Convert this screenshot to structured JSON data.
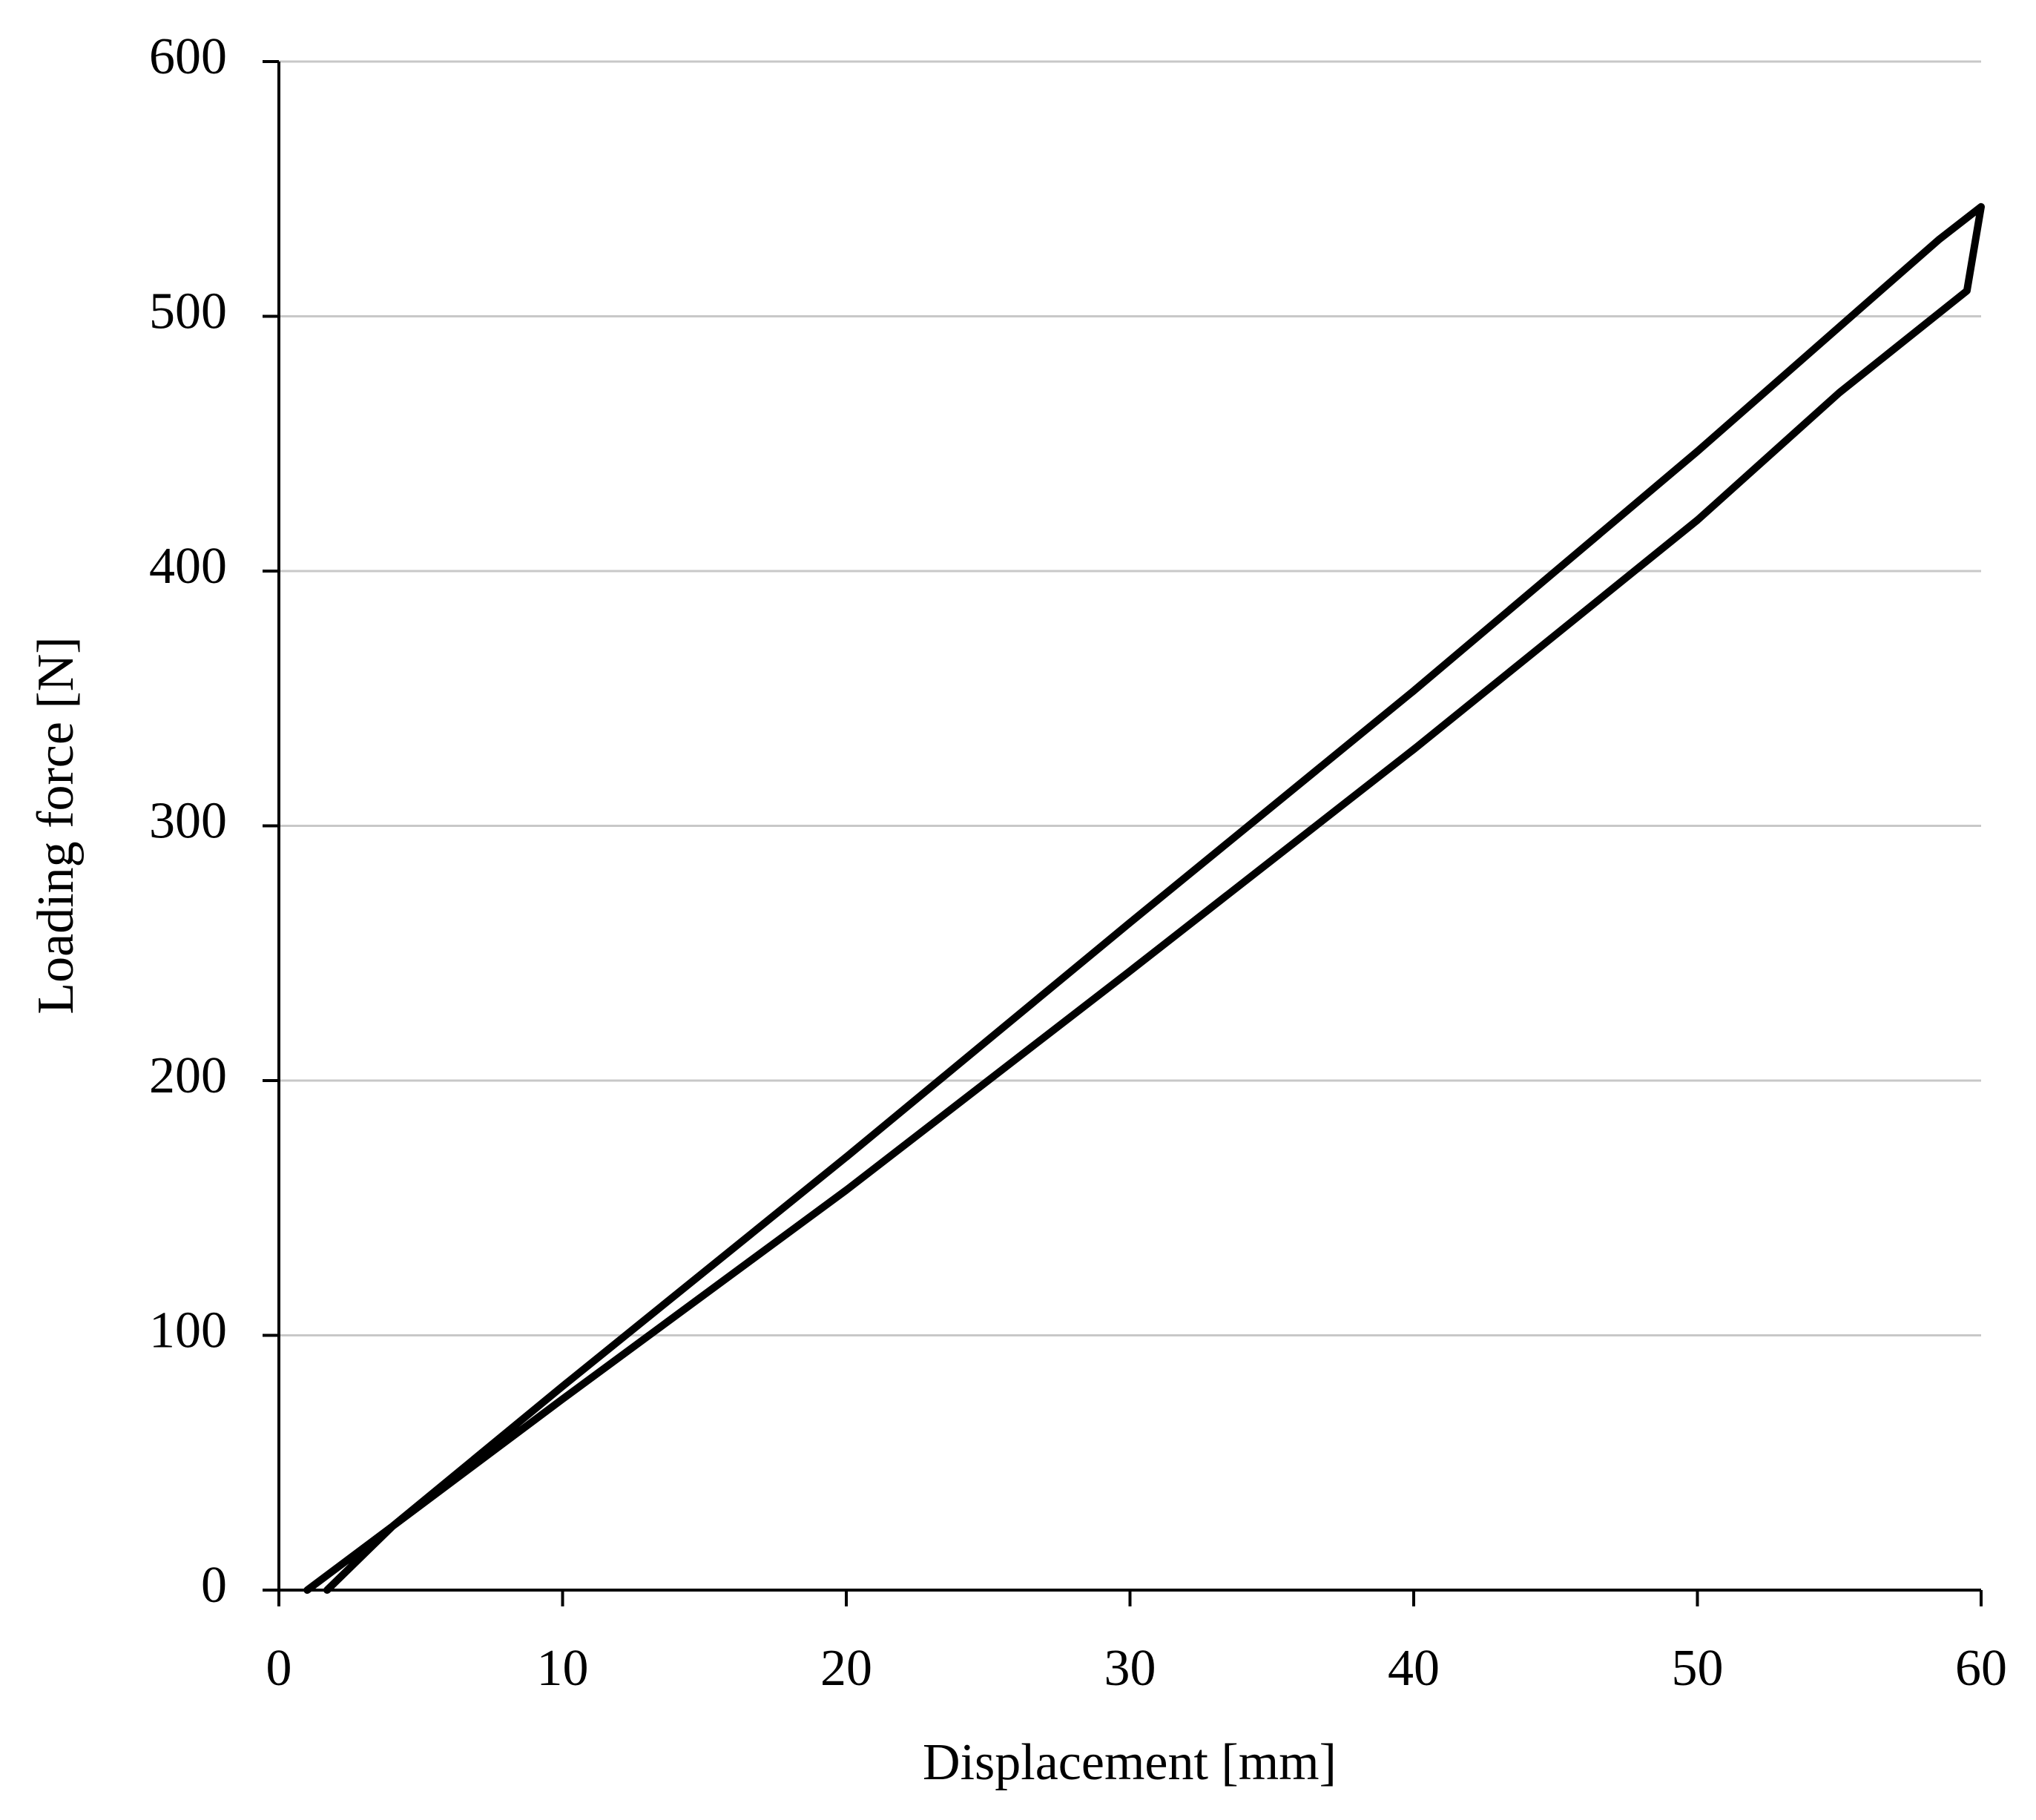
{
  "chart_data": {
    "type": "line",
    "x_label": "Displacement [mm]",
    "y_label": "Loading force [N]",
    "x": [
      1.0,
      4,
      10,
      20,
      30,
      40,
      50,
      58.5,
      60,
      59.5,
      55,
      50,
      40,
      30,
      20,
      10,
      4,
      1.7
    ],
    "series": [
      {
        "color": "#000000",
        "values": [
          0,
          25,
          80,
          170,
          262,
          353,
          447,
          530,
          543,
          510,
          470,
          420,
          330,
          243,
          157,
          75,
          25,
          0
        ]
      }
    ],
    "xlim": [
      0,
      60
    ],
    "xticks": [
      0,
      10,
      20,
      30,
      40,
      50,
      60
    ],
    "ylim": [
      0,
      600
    ],
    "yticks": [
      0,
      100,
      200,
      300,
      400,
      500,
      600
    ],
    "grid": true
  }
}
